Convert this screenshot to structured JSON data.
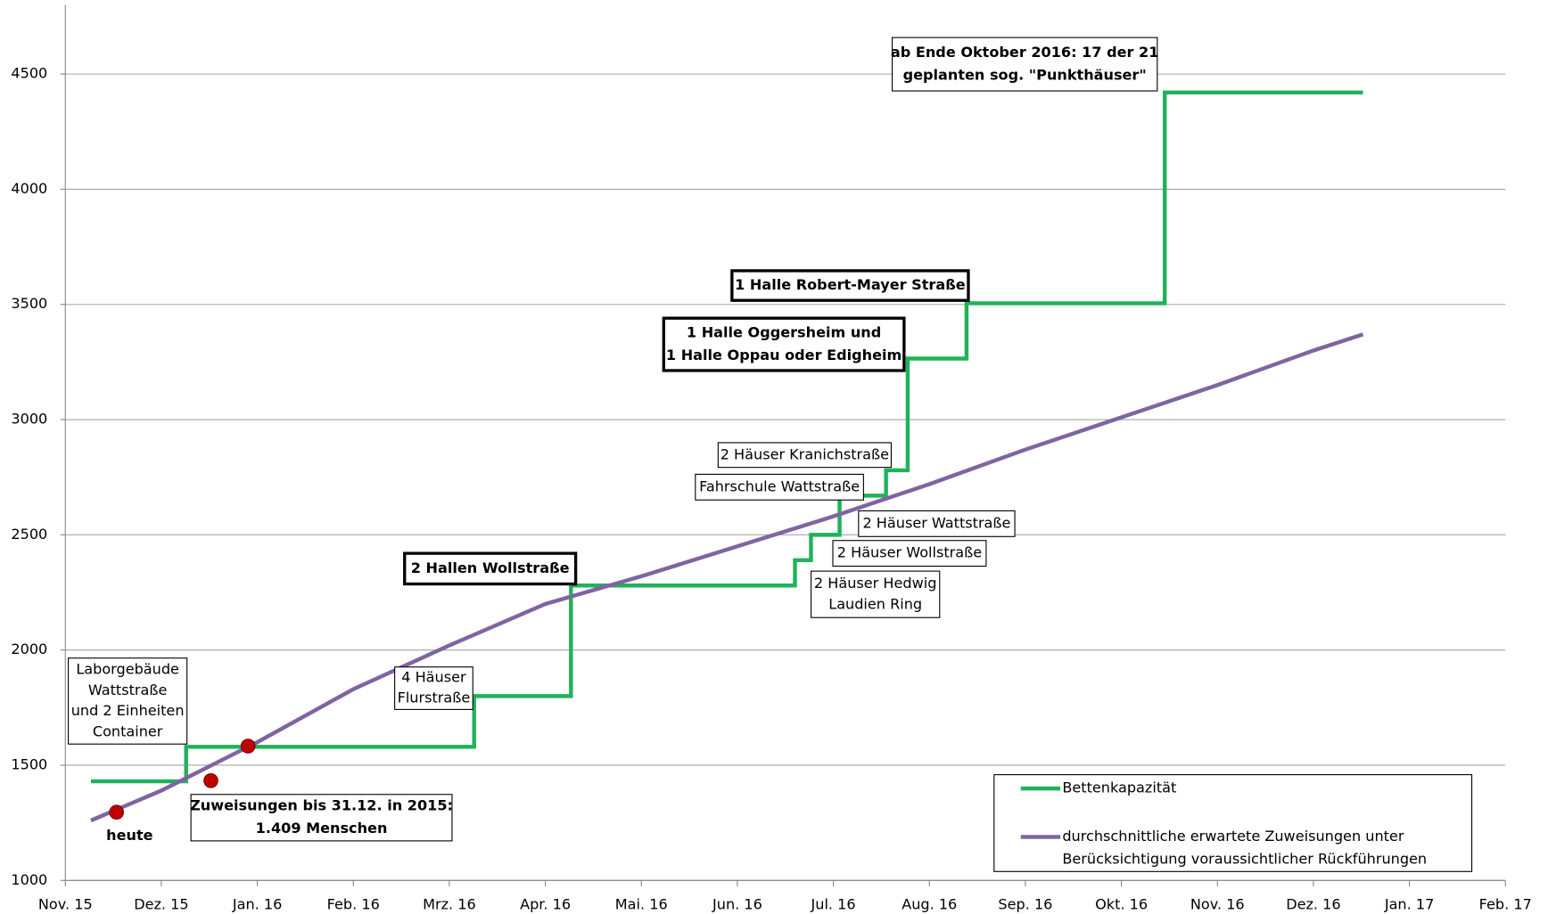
{
  "chart_data": {
    "type": "line",
    "xlim": [
      "2015-11",
      "2017-02"
    ],
    "xticks": [
      {
        "value": "2015-11",
        "label": "Nov. 15"
      },
      {
        "value": "2015-12",
        "label": "Dez. 15"
      },
      {
        "value": "2016-01",
        "label": "Jan. 16"
      },
      {
        "value": "2016-02",
        "label": "Feb. 16"
      },
      {
        "value": "2016-03",
        "label": "Mrz. 16"
      },
      {
        "value": "2016-04",
        "label": "Apr. 16"
      },
      {
        "value": "2016-05",
        "label": "Mai. 16"
      },
      {
        "value": "2016-06",
        "label": "Jun. 16"
      },
      {
        "value": "2016-07",
        "label": "Jul. 16"
      },
      {
        "value": "2016-08",
        "label": "Aug. 16"
      },
      {
        "value": "2016-09",
        "label": "Sep. 16"
      },
      {
        "value": "2016-10",
        "label": "Okt. 16"
      },
      {
        "value": "2016-11",
        "label": "Nov. 16"
      },
      {
        "value": "2016-12",
        "label": "Dez. 16"
      },
      {
        "value": "2017-01",
        "label": "Jan. 17"
      },
      {
        "value": "2017-02",
        "label": "Feb. 17"
      }
    ],
    "ylim": [
      1000,
      4800
    ],
    "yticks": [
      1000,
      1500,
      2000,
      2500,
      3000,
      3500,
      4000,
      4500
    ],
    "grid": true,
    "legend": "lower right",
    "series": [
      {
        "name": "Bettenkapazität",
        "color": "#1fb25a",
        "step": "post",
        "x": [
          "2015-11-09",
          "2015-12-09",
          "2016-03-09",
          "2016-04-09",
          "2016-06-19",
          "2016-06-24",
          "2016-07-03",
          "2016-07-18",
          "2016-07-25",
          "2016-08-13",
          "2016-10-15",
          "2016-12-17"
        ],
        "values": [
          1430,
          1580,
          1800,
          2280,
          2390,
          2500,
          2670,
          2780,
          3265,
          3505,
          4420,
          4420
        ]
      },
      {
        "name": "durchschnittliche erwartete Zuweisungen unter Berücksichtigung voraussichtlicher Rückführungen",
        "color": "#8064a2",
        "x": [
          "2015-11-09",
          "2015-12-01",
          "2016-01-01",
          "2016-02-01",
          "2016-03-01",
          "2016-04-01",
          "2016-05-01",
          "2016-06-01",
          "2016-07-01",
          "2016-08-01",
          "2016-09-01",
          "2016-10-01",
          "2016-11-01",
          "2016-12-01",
          "2016-12-17"
        ],
        "values": [
          1260,
          1390,
          1600,
          1830,
          2020,
          2200,
          2320,
          2450,
          2580,
          2720,
          2870,
          3010,
          3150,
          3300,
          3370
        ]
      }
    ],
    "markers": {
      "color": "#c00000",
      "x": [
        "2015-11-17",
        "2015-12-17",
        "2015-12-29"
      ],
      "values": [
        1296,
        1433,
        1583
      ]
    },
    "annotations": [
      {
        "text": [
          "ab Ende Oktober 2016: 17 der 21",
          "geplanten sog. \"Punkthäuser\""
        ],
        "style": "bold-thin"
      },
      {
        "text": [
          "1 Halle Robert-Mayer Straße"
        ],
        "style": "bold-thick"
      },
      {
        "text": [
          "1 Halle Oggersheim und",
          "1 Halle Oppau oder Edigheim"
        ],
        "style": "bold-thick"
      },
      {
        "text": [
          "2 Häuser Kranichstraße"
        ],
        "style": "plain"
      },
      {
        "text": [
          "Fahrschule Wattstraße"
        ],
        "style": "plain"
      },
      {
        "text": [
          "2 Häuser Wattstraße"
        ],
        "style": "plain"
      },
      {
        "text": [
          "2 Häuser Wollstraße"
        ],
        "style": "plain"
      },
      {
        "text": [
          "2 Häuser Hedwig",
          "Laudien Ring"
        ],
        "style": "plain"
      },
      {
        "text": [
          "2 Hallen Wollstraße"
        ],
        "style": "bold-thick"
      },
      {
        "text": [
          "4 Häuser",
          "Flurstraße"
        ],
        "style": "plain"
      },
      {
        "text": [
          "Laborgebäude",
          "Wattstraße",
          "und 2 Einheiten",
          "Container"
        ],
        "style": "plain"
      },
      {
        "text": [
          "Zuweisungen bis 31.12. in 2015:",
          "1.409 Menschen"
        ],
        "style": "bold-thin"
      },
      {
        "text": [
          "heute"
        ],
        "style": "bold-none"
      }
    ]
  }
}
